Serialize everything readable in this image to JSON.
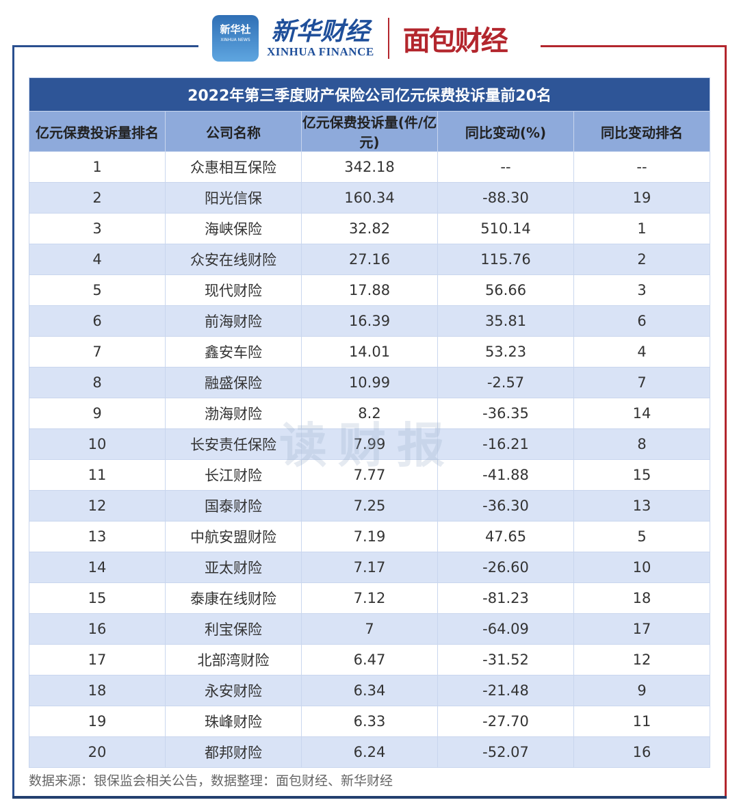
{
  "logos": {
    "xinhua_badge": "新华社",
    "xinhua_badge_en": "XINHUA NEWS",
    "xinhua_finance_cn": "新华财经",
    "xinhua_finance_en": "XINHUA FINANCE",
    "mianbao": "面包财经"
  },
  "colors": {
    "title_bg": "#2e5597",
    "header_bg": "#8eaadb",
    "alt_row": "#d9e3f6",
    "frame_blue": "#2a4f8f",
    "frame_red": "#b3262d"
  },
  "chart_data": {
    "type": "table",
    "title": "2022年第三季度财产保险公司亿元保费投诉量前20名",
    "columns": [
      "亿元保费投诉量排名",
      "公司名称",
      "亿元保费投诉量(件/亿元)",
      "同比变动(%)",
      "同比变动排名"
    ],
    "rows": [
      [
        "1",
        "众惠相互保险",
        "342.18",
        "--",
        "--"
      ],
      [
        "2",
        "阳光信保",
        "160.34",
        "-88.30",
        "19"
      ],
      [
        "3",
        "海峡保险",
        "32.82",
        "510.14",
        "1"
      ],
      [
        "4",
        "众安在线财险",
        "27.16",
        "115.76",
        "2"
      ],
      [
        "5",
        "现代财险",
        "17.88",
        "56.66",
        "3"
      ],
      [
        "6",
        "前海财险",
        "16.39",
        "35.81",
        "6"
      ],
      [
        "7",
        "鑫安车险",
        "14.01",
        "53.23",
        "4"
      ],
      [
        "8",
        "融盛保险",
        "10.99",
        "-2.57",
        "7"
      ],
      [
        "9",
        "渤海财险",
        "8.2",
        "-36.35",
        "14"
      ],
      [
        "10",
        "长安责任保险",
        "7.99",
        "-16.21",
        "8"
      ],
      [
        "11",
        "长江财险",
        "7.77",
        "-41.88",
        "15"
      ],
      [
        "12",
        "国泰财险",
        "7.25",
        "-36.30",
        "13"
      ],
      [
        "13",
        "中航安盟财险",
        "7.19",
        "47.65",
        "5"
      ],
      [
        "14",
        "亚太财险",
        "7.17",
        "-26.60",
        "10"
      ],
      [
        "15",
        "泰康在线财险",
        "7.12",
        "-81.23",
        "18"
      ],
      [
        "16",
        "利宝保险",
        "7",
        "-64.09",
        "17"
      ],
      [
        "17",
        "北部湾财险",
        "6.47",
        "-31.52",
        "12"
      ],
      [
        "18",
        "永安财险",
        "6.34",
        "-21.48",
        "9"
      ],
      [
        "19",
        "珠峰财险",
        "6.33",
        "-27.70",
        "11"
      ],
      [
        "20",
        "都邦财险",
        "6.24",
        "-52.07",
        "16"
      ]
    ]
  },
  "watermark": "读财报",
  "source": "数据来源：银保监会相关公告，数据整理：面包财经、新华财经"
}
